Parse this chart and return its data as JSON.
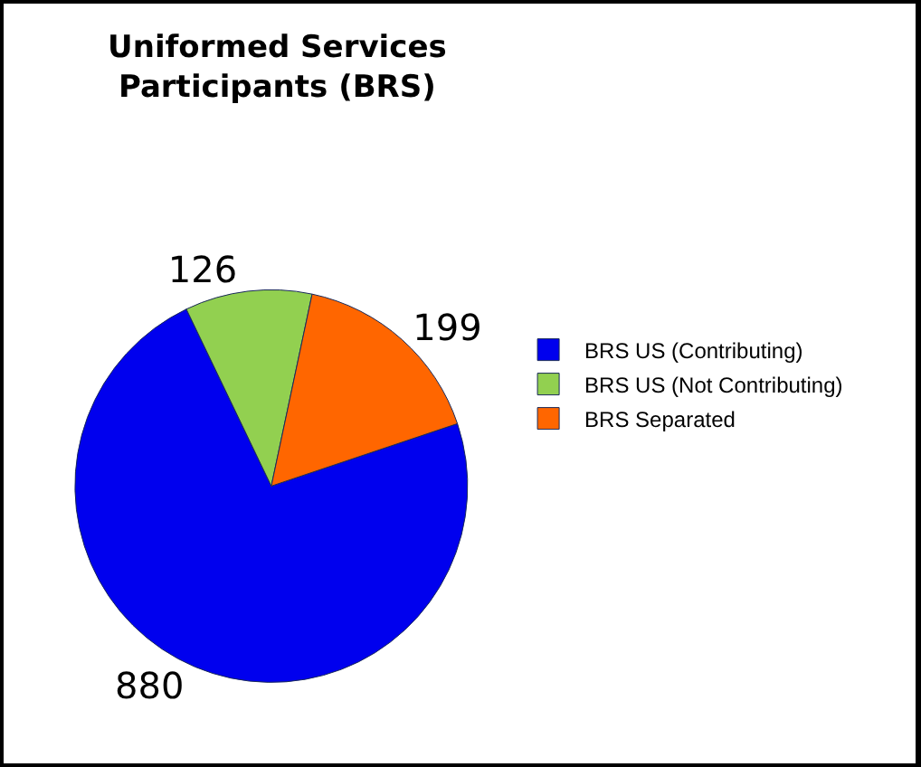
{
  "chart_data": {
    "type": "pie",
    "title": "Uniformed Services Participants (BRS)",
    "categories": [
      "BRS US (Contributing)",
      "BRS US (Not Contributing)",
      "BRS Separated"
    ],
    "values": [
      880,
      126,
      199
    ],
    "colors": [
      "#0000ee",
      "#92d050",
      "#ff6600"
    ],
    "data_labels": true,
    "legend": "right"
  }
}
